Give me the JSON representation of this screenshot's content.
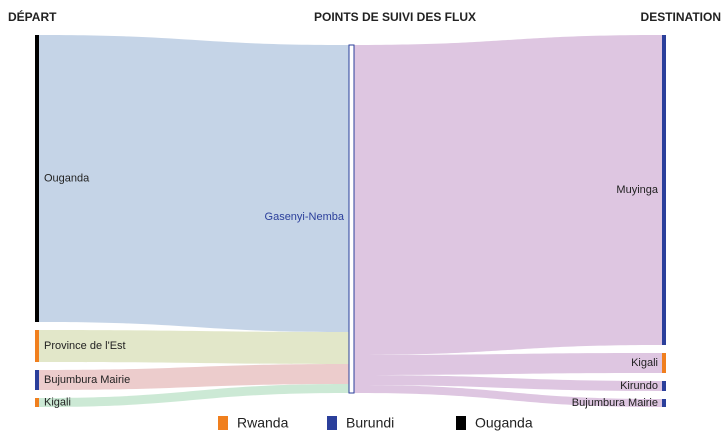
{
  "chart_data": {
    "type": "sankey",
    "column_titles": [
      "DÉPART",
      "POINTS DE SUIVI DES FLUX",
      "DESTINATION"
    ],
    "nodes": [
      {
        "name": "Ouganda",
        "column": 0,
        "group": "Ouganda"
      },
      {
        "name": "Province de l'Est",
        "column": 0,
        "group": "Rwanda"
      },
      {
        "name": "Bujumbura Mairie",
        "column": 0,
        "group": "Burundi"
      },
      {
        "name": "Kigali",
        "column": 0,
        "group": "Rwanda"
      },
      {
        "name": "Gasenyi-Nemba",
        "column": 1,
        "group": "Burundi"
      },
      {
        "name": "Muyinga",
        "column": 2,
        "group": "Burundi"
      },
      {
        "name": "Kigali",
        "column": 2,
        "group": "Rwanda"
      },
      {
        "name": "Kirundo",
        "column": 2,
        "group": "Burundi"
      },
      {
        "name": "Bujumbura Mairie",
        "column": 2,
        "group": "Burundi"
      }
    ],
    "links": [
      {
        "source": 0,
        "target": 4,
        "value": 287,
        "color": "#c2d2e6"
      },
      {
        "source": 1,
        "target": 4,
        "value": 32,
        "color": "#e0e6c6"
      },
      {
        "source": 2,
        "target": 4,
        "value": 20,
        "color": "#ebc9c9"
      },
      {
        "source": 3,
        "target": 4,
        "value": 9,
        "color": "#c9e8d3"
      },
      {
        "source": 4,
        "target": 5,
        "value": 310,
        "color": "#dcc3df"
      },
      {
        "source": 4,
        "target": 6,
        "value": 20,
        "color": "#dcc3df"
      },
      {
        "source": 4,
        "target": 7,
        "value": 10,
        "color": "#dcc3df"
      },
      {
        "source": 4,
        "target": 8,
        "value": 8,
        "color": "#dcc3df"
      }
    ],
    "legend": [
      {
        "name": "Rwanda",
        "color": "#f07f1e"
      },
      {
        "name": "Burundi",
        "color": "#2b3f9b"
      },
      {
        "name": "Ouganda",
        "color": "#000000"
      }
    ]
  }
}
